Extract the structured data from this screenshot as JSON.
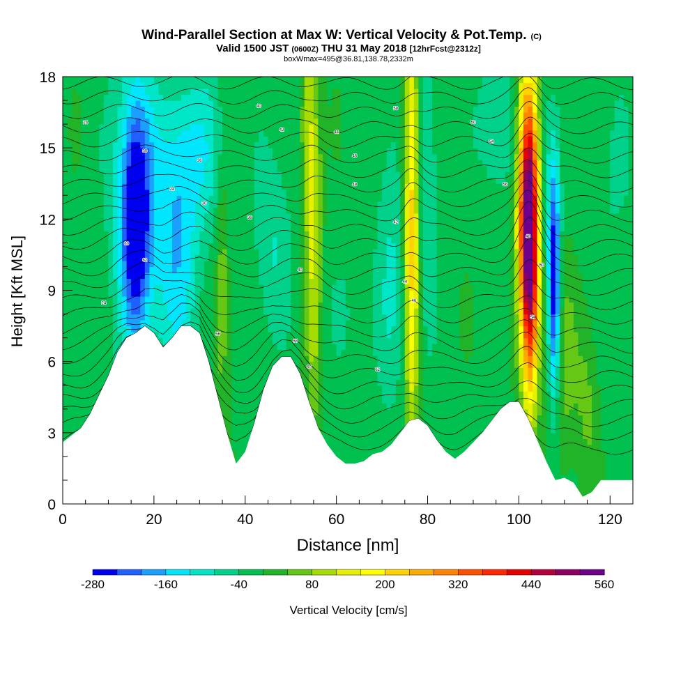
{
  "chart_data": {
    "type": "heatmap",
    "title": "Wind-Parallel Section at Max W: Vertical Velocity & Pot.Temp.",
    "title_mark": "(C)",
    "subtitle": {
      "part1": "Valid 1500 JST",
      "part2": "(0600Z)",
      "part3": "THU 31 May 2018",
      "part4": "[12hrFcst@2312z]"
    },
    "subtitle2": "boxWmax=495@36.81,138.78,2332m",
    "xlabel": "Distance [nm]",
    "ylabel": "Height [Kft MSL]",
    "xlim": [
      0,
      125
    ],
    "ylim": [
      0,
      18
    ],
    "x_ticks": [
      0,
      20,
      40,
      60,
      80,
      100,
      120
    ],
    "y_ticks": [
      0,
      3,
      6,
      9,
      12,
      15,
      18
    ],
    "colorbar": {
      "label": "Vertical Velocity [cm/s]",
      "ticks": [
        -280,
        -160,
        -40,
        80,
        200,
        320,
        440,
        560
      ],
      "range": [
        -280,
        560
      ],
      "colors": [
        "#0000f0",
        "#2060ff",
        "#1aa0ff",
        "#00e6ff",
        "#00e6c8",
        "#00d28c",
        "#00c050",
        "#22b428",
        "#66c814",
        "#a6dc00",
        "#e6f000",
        "#ffff00",
        "#ffd200",
        "#ffaa00",
        "#ff8200",
        "#ff5000",
        "#ff2800",
        "#e60000",
        "#b4003c",
        "#8c0064",
        "#6e008c"
      ]
    },
    "terrain": [
      [
        0,
        2.6
      ],
      [
        2,
        2.9
      ],
      [
        4,
        3.2
      ],
      [
        6,
        3.8
      ],
      [
        8,
        4.6
      ],
      [
        10,
        5.4
      ],
      [
        12,
        6.4
      ],
      [
        14,
        7.0
      ],
      [
        16,
        7.2
      ],
      [
        18,
        7.5
      ],
      [
        20,
        7.2
      ],
      [
        22,
        6.6
      ],
      [
        24,
        7.0
      ],
      [
        26,
        7.5
      ],
      [
        28,
        7.5
      ],
      [
        30,
        7.2
      ],
      [
        32,
        6.0
      ],
      [
        34,
        4.5
      ],
      [
        36,
        3.0
      ],
      [
        38,
        1.7
      ],
      [
        40,
        2.2
      ],
      [
        42,
        3.4
      ],
      [
        44,
        4.8
      ],
      [
        46,
        5.8
      ],
      [
        48,
        6.2
      ],
      [
        50,
        6.2
      ],
      [
        52,
        5.5
      ],
      [
        54,
        4.3
      ],
      [
        56,
        3.2
      ],
      [
        58,
        2.5
      ],
      [
        60,
        2.0
      ],
      [
        62,
        1.7
      ],
      [
        64,
        1.7
      ],
      [
        66,
        1.8
      ],
      [
        68,
        2.1
      ],
      [
        70,
        2.2
      ],
      [
        72,
        2.5
      ],
      [
        74,
        3.0
      ],
      [
        76,
        3.5
      ],
      [
        78,
        3.6
      ],
      [
        80,
        3.3
      ],
      [
        82,
        2.7
      ],
      [
        84,
        2.2
      ],
      [
        86,
        1.9
      ],
      [
        88,
        2.2
      ],
      [
        90,
        2.6
      ],
      [
        92,
        3.0
      ],
      [
        94,
        3.5
      ],
      [
        96,
        4.0
      ],
      [
        98,
        4.3
      ],
      [
        100,
        4.3
      ],
      [
        102,
        3.6
      ],
      [
        104,
        2.7
      ],
      [
        106,
        1.8
      ],
      [
        108,
        1.0
      ],
      [
        110,
        1.1
      ],
      [
        112,
        0.9
      ],
      [
        114,
        0.3
      ],
      [
        116,
        0.5
      ],
      [
        118,
        1.0
      ],
      [
        120,
        1.0
      ],
      [
        122,
        1.0
      ],
      [
        125,
        1.0
      ]
    ],
    "background_w": -10,
    "w_features": [
      {
        "x": 16,
        "y": 12.0,
        "sx": 2.2,
        "sy": 3.3,
        "w": -230
      },
      {
        "x": 16,
        "y": 12.8,
        "sx": 4.0,
        "sy": 5.0,
        "w": -110
      },
      {
        "x": 25,
        "y": 10.5,
        "sx": 3.5,
        "sy": 4.0,
        "w": -130
      },
      {
        "x": 30,
        "y": 15.0,
        "sx": 5.0,
        "sy": 2.5,
        "w": -90
      },
      {
        "x": 55,
        "y": 11.5,
        "sx": 1.2,
        "sy": 6.0,
        "w": 140
      },
      {
        "x": 53.5,
        "y": 16.0,
        "sx": 0.9,
        "sy": 3.0,
        "w": 90
      },
      {
        "x": 35,
        "y": 9.0,
        "sx": 1.0,
        "sy": 4.5,
        "w": 80
      },
      {
        "x": 46,
        "y": 11.0,
        "sx": 3.0,
        "sy": 3.0,
        "w": -70
      },
      {
        "x": 76.5,
        "y": 12.0,
        "sx": 1.1,
        "sy": 7.0,
        "w": 230
      },
      {
        "x": 72,
        "y": 11.0,
        "sx": 2.0,
        "sy": 5.0,
        "w": -60
      },
      {
        "x": 80,
        "y": 13.0,
        "sx": 1.5,
        "sy": 5.0,
        "w": -70
      },
      {
        "x": 95,
        "y": 16.0,
        "sx": 3.0,
        "sy": 2.0,
        "w": -80
      },
      {
        "x": 102.5,
        "y": 10.5,
        "sx": 1.4,
        "sy": 4.2,
        "w": 480
      },
      {
        "x": 101.5,
        "y": 13.5,
        "sx": 1.5,
        "sy": 4.0,
        "w": 240
      },
      {
        "x": 107.8,
        "y": 9.5,
        "sx": 0.9,
        "sy": 3.6,
        "w": -280
      },
      {
        "x": 106,
        "y": 14.0,
        "sx": 1.0,
        "sy": 3.0,
        "w": -60
      },
      {
        "x": 110,
        "y": 6.0,
        "sx": 2.0,
        "sy": 3.0,
        "w": 70
      },
      {
        "x": 115,
        "y": 4.5,
        "sx": 1.8,
        "sy": 3.0,
        "w": 60
      },
      {
        "x": 120,
        "y": 13.0,
        "sx": 5.0,
        "sy": 5.0,
        "w": -30
      },
      {
        "x": 65,
        "y": 8.0,
        "sx": 6.0,
        "sy": 3.0,
        "w": -30
      }
    ],
    "theta_contour_labels": [
      "24",
      "30",
      "36",
      "40",
      "42",
      "44",
      "46",
      "48",
      "50",
      "54",
      "56",
      "58",
      "60",
      "62"
    ],
    "theta_labels_positions_note": ""
  }
}
